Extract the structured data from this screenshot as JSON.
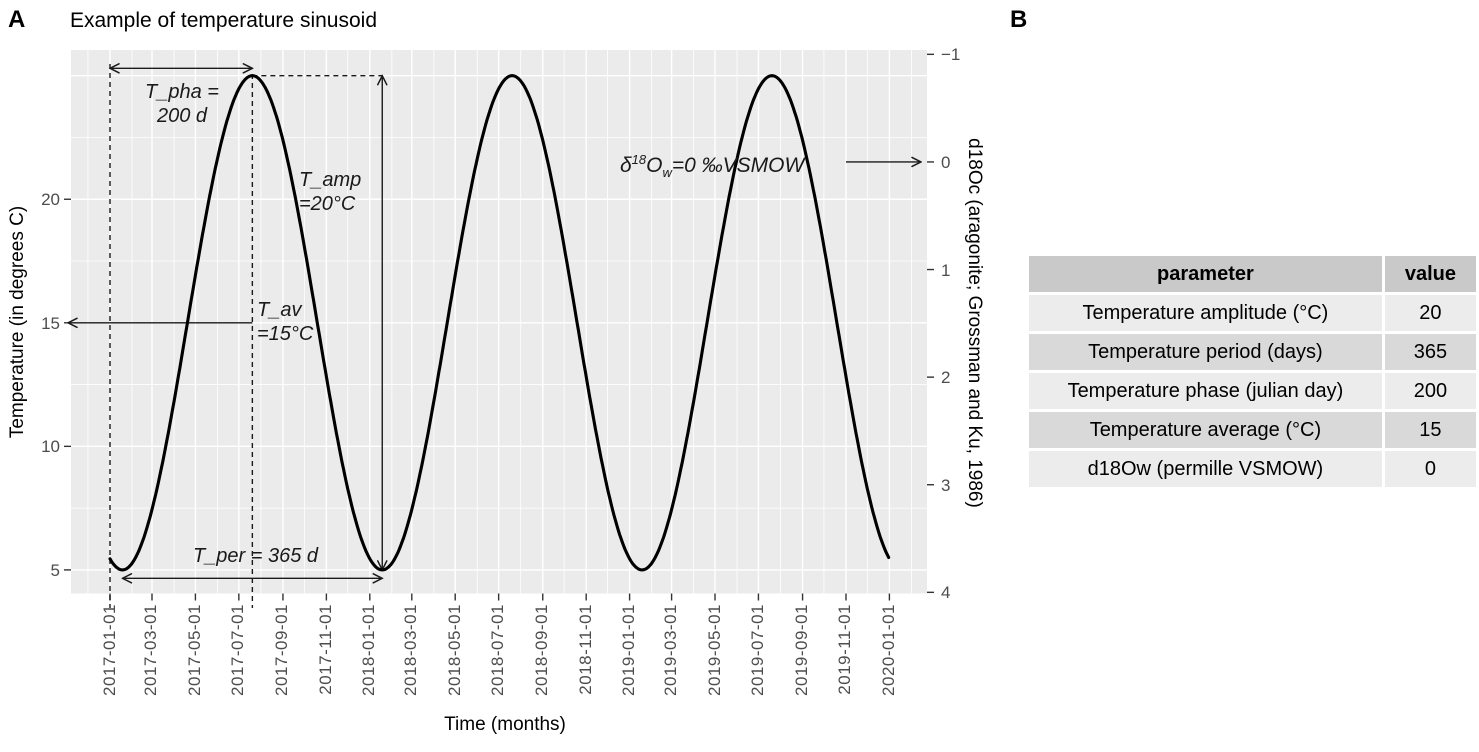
{
  "figure": {
    "panel_a_label": "A",
    "panel_b_label": "B",
    "title": "Example of temperature sinusoid"
  },
  "chart_data": {
    "type": "line",
    "title": "Example of temperature sinusoid",
    "x_axis": {
      "label": "Time (months)",
      "start_date": "2017-01-01",
      "end_date": "2020-01-01",
      "major_tick_labels": [
        "2017-01-01",
        "2017-03-01",
        "2017-05-01",
        "2017-07-01",
        "2017-09-01",
        "2017-11-01",
        "2018-01-01",
        "2018-03-01",
        "2018-05-01",
        "2018-07-01",
        "2018-09-01",
        "2018-11-01",
        "2019-01-01",
        "2019-03-01",
        "2019-05-01",
        "2019-07-01",
        "2019-09-01",
        "2019-11-01",
        "2020-01-01"
      ],
      "minor_ticks": "monthly gridlines between major ticks"
    },
    "y_axis_left": {
      "label": "Temperature (in degrees C)",
      "ticks": [
        5,
        10,
        15,
        20
      ],
      "major_gridlines": [
        5,
        10,
        15,
        20,
        25
      ],
      "minor_gridlines": [
        7.5,
        12.5,
        17.5,
        22.5
      ],
      "range": [
        4,
        26
      ]
    },
    "y_axis_right": {
      "label": "d18Oc (aragonite; Grossman and Ku, 1986)",
      "ticks": [
        -1,
        0,
        1,
        2,
        3,
        4
      ],
      "tick_labels": [
        "−1",
        "0",
        "1",
        "2",
        "3",
        "4"
      ],
      "direction": "reversed (−1 at top, 4 at bottom)"
    },
    "series": [
      {
        "name": "temperature-sinusoid",
        "formula": "T(t) = 15 + 10*cos(2*pi*(t - 200)/365), t in days since 2017-01-01, t = 0..1095",
        "average_C": 15,
        "full_amplitude_C": 20,
        "period_days": 365,
        "phase_peak_julian_day": 200,
        "min_C": 5,
        "max_C": 25,
        "color": "#000000"
      }
    ],
    "annotations": {
      "t_pha": {
        "line1": "T_pha =",
        "line2": "200 d",
        "meaning": "arrow from 2017-01-01 to first peak (day 200)"
      },
      "t_amp": {
        "line1": "T_amp",
        "line2": "=20°C",
        "meaning": "vertical double arrow from 25°C down to 5°C"
      },
      "t_av": {
        "line1": "T_av",
        "line2": "=15°C",
        "meaning": "horizontal arrow pointing left to 15°C on left axis"
      },
      "t_per": {
        "text": "T_per = 365 d",
        "meaning": "double arrow between consecutive troughs"
      },
      "d18ow": {
        "delta": "δ",
        "sup": "18",
        "base": "O",
        "sub": "w",
        "rest": "=0 ‰VSMOW",
        "meaning": "arrow pointing right to 0 on right axis"
      }
    },
    "legend": "none",
    "grid": "white major/minor gridlines on grey panel"
  },
  "table": {
    "headers": [
      "parameter",
      "value"
    ],
    "rows": [
      [
        "Temperature amplitude (°C)",
        "20"
      ],
      [
        "Temperature period (days)",
        "365"
      ],
      [
        "Temperature phase (julian day)",
        "200"
      ],
      [
        "Temperature average (°C)",
        "15"
      ],
      [
        "d18Ow (permille VSMOW)",
        "0"
      ]
    ]
  },
  "colors": {
    "panel_bg": "#EBEBEB",
    "grid": "#FFFFFF",
    "curve": "#000000",
    "annotation": "#1A1A1A",
    "tick_text": "#4D4D4D",
    "tick_mark": "#333333",
    "table_header_bg": "#C9C9C9",
    "table_row_odd_bg": "#ECECEC",
    "table_row_even_bg": "#D9D9D9"
  }
}
